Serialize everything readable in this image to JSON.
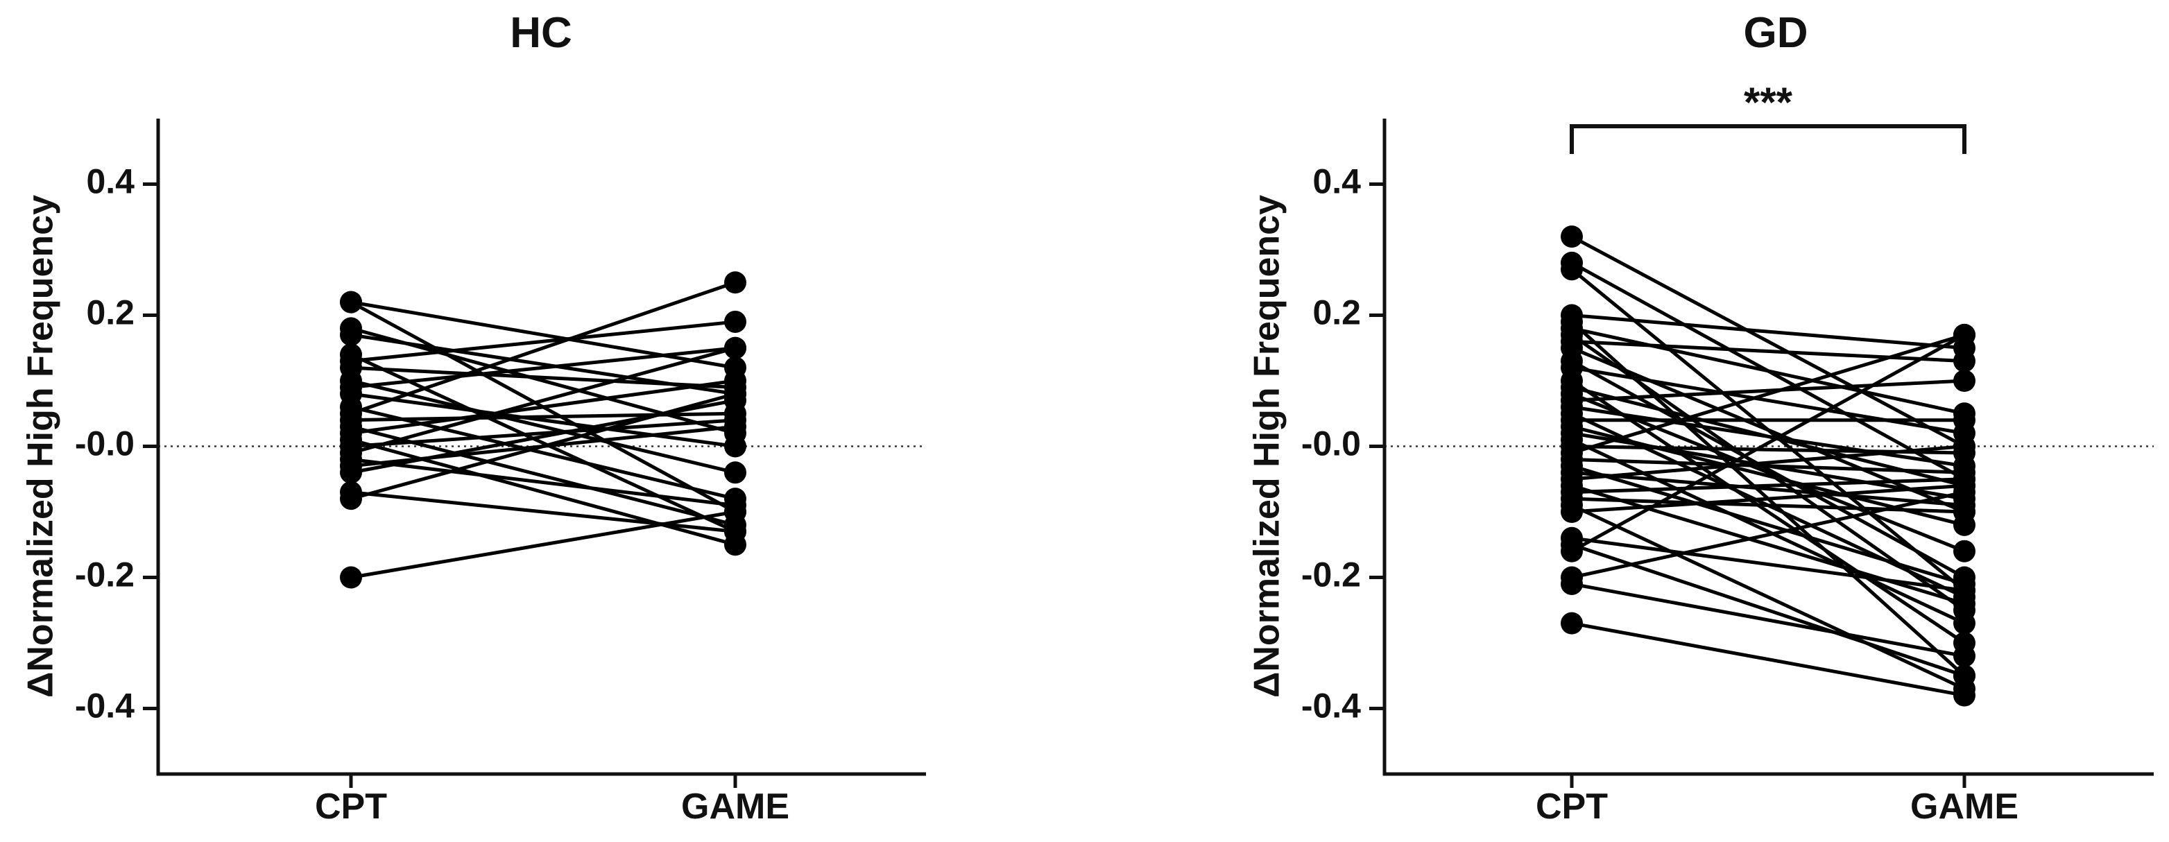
{
  "chart_data": [
    {
      "type": "paired-line",
      "title": "HC",
      "y_label": "ΔNormalized High Frequency",
      "categories": [
        "CPT",
        "GAME"
      ],
      "color": "#000000",
      "ylim": [
        -0.5,
        0.5
      ],
      "yticks": [
        -0.4,
        -0.2,
        {
          "value": 0,
          "label": "-0.0"
        },
        0.2,
        0.4
      ],
      "reference_line": 0,
      "series": [
        {
          "values": [
            0.22,
            -0.1
          ]
        },
        {
          "values": [
            0.22,
            0.12
          ]
        },
        {
          "values": [
            0.18,
            0.02
          ]
        },
        {
          "values": [
            0.17,
            0.08
          ]
        },
        {
          "values": [
            0.14,
            -0.13
          ]
        },
        {
          "values": [
            0.13,
            0.19
          ]
        },
        {
          "values": [
            0.12,
            0.09
          ]
        },
        {
          "values": [
            0.1,
            -0.04
          ]
        },
        {
          "values": [
            0.09,
            0.15
          ]
        },
        {
          "values": [
            0.08,
            0.0
          ]
        },
        {
          "values": [
            0.06,
            -0.08
          ]
        },
        {
          "values": [
            0.05,
            0.25
          ]
        },
        {
          "values": [
            0.04,
            0.05
          ]
        },
        {
          "values": [
            0.03,
            -0.12
          ]
        },
        {
          "values": [
            0.02,
            0.1
          ]
        },
        {
          "values": [
            0.01,
            -0.15
          ]
        },
        {
          "values": [
            0.0,
            0.04
          ]
        },
        {
          "values": [
            -0.01,
            0.15
          ]
        },
        {
          "values": [
            -0.02,
            -0.09
          ]
        },
        {
          "values": [
            -0.03,
            0.03
          ]
        },
        {
          "values": [
            -0.04,
            0.07
          ]
        },
        {
          "values": [
            -0.07,
            -0.13
          ]
        },
        {
          "values": [
            -0.08,
            0.08
          ]
        },
        {
          "values": [
            -0.2,
            -0.1
          ]
        }
      ]
    },
    {
      "type": "paired-line",
      "title": "GD",
      "y_label": "ΔNormalized High Frequency",
      "categories": [
        "CPT",
        "GAME"
      ],
      "color": "#000000",
      "ylim": [
        -0.5,
        0.5
      ],
      "yticks": [
        -0.4,
        -0.2,
        {
          "value": 0,
          "label": "-0.0"
        },
        0.2,
        0.4
      ],
      "reference_line": 0,
      "annotation": "***",
      "series": [
        {
          "values": [
            0.32,
            0.0
          ]
        },
        {
          "values": [
            0.28,
            -0.05
          ]
        },
        {
          "values": [
            0.27,
            -0.22
          ]
        },
        {
          "values": [
            0.2,
            0.15
          ]
        },
        {
          "values": [
            0.19,
            -0.35
          ]
        },
        {
          "values": [
            0.18,
            0.05
          ]
        },
        {
          "values": [
            0.17,
            -0.25
          ]
        },
        {
          "values": [
            0.16,
            0.13
          ]
        },
        {
          "values": [
            0.15,
            -0.1
          ]
        },
        {
          "values": [
            0.13,
            -0.2
          ]
        },
        {
          "values": [
            0.12,
            0.02
          ]
        },
        {
          "values": [
            0.1,
            -0.3
          ]
        },
        {
          "values": [
            0.09,
            -0.06
          ]
        },
        {
          "values": [
            0.08,
            -0.16
          ]
        },
        {
          "values": [
            0.07,
            0.1
          ]
        },
        {
          "values": [
            0.06,
            -0.03
          ]
        },
        {
          "values": [
            0.05,
            -0.23
          ]
        },
        {
          "values": [
            0.04,
            0.04
          ]
        },
        {
          "values": [
            0.03,
            -0.12
          ]
        },
        {
          "values": [
            0.02,
            -0.08
          ]
        },
        {
          "values": [
            0.01,
            -0.27
          ]
        },
        {
          "values": [
            0.0,
            -0.01
          ]
        },
        {
          "values": [
            -0.01,
            0.17
          ]
        },
        {
          "values": [
            -0.02,
            -0.04
          ]
        },
        {
          "values": [
            -0.03,
            -0.21
          ]
        },
        {
          "values": [
            -0.04,
            -0.09
          ]
        },
        {
          "values": [
            -0.05,
            0.0
          ]
        },
        {
          "values": [
            -0.06,
            -0.24
          ]
        },
        {
          "values": [
            -0.07,
            -0.05
          ]
        },
        {
          "values": [
            -0.08,
            -0.1
          ]
        },
        {
          "values": [
            -0.09,
            -0.37
          ]
        },
        {
          "values": [
            -0.1,
            -0.06
          ]
        },
        {
          "values": [
            -0.14,
            -0.22
          ]
        },
        {
          "values": [
            -0.15,
            -0.35
          ]
        },
        {
          "values": [
            -0.16,
            0.17
          ]
        },
        {
          "values": [
            -0.2,
            -0.07
          ]
        },
        {
          "values": [
            -0.21,
            -0.32
          ]
        },
        {
          "values": [
            -0.27,
            -0.38
          ]
        }
      ]
    }
  ]
}
